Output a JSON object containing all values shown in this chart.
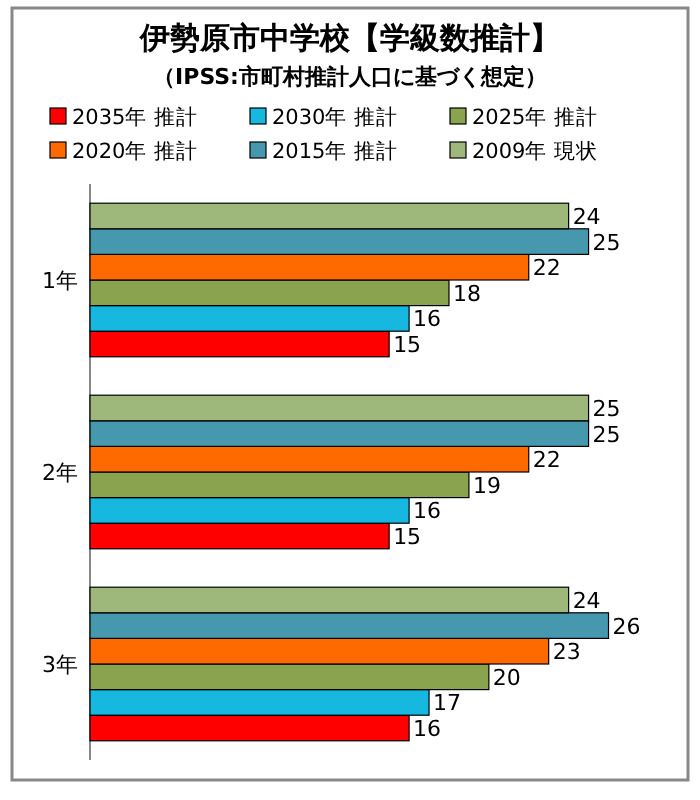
{
  "chart_data": {
    "type": "bar",
    "orientation": "horizontal",
    "title": "伊勢原市中学校【学級数推計】",
    "subtitle": "（IPSS:市町村推計人口に基づく想定）",
    "categories": [
      "1年",
      "2年",
      "3年"
    ],
    "data_labels": true,
    "legend": "top",
    "series": [
      {
        "name": "2035年 推計",
        "color": "#ff0000",
        "values": [
          15,
          15,
          16
        ]
      },
      {
        "name": "2030年 推計",
        "color": "#17b8e0",
        "values": [
          16,
          16,
          17
        ]
      },
      {
        "name": "2025年 推計",
        "color": "#8aa34e",
        "values": [
          18,
          19,
          20
        ]
      },
      {
        "name": "2020年 推計",
        "color": "#ff6a00",
        "values": [
          22,
          22,
          23
        ]
      },
      {
        "name": "2015年 推計",
        "color": "#4598ae",
        "values": [
          25,
          25,
          26
        ]
      },
      {
        "name": "2009年 現状",
        "color": "#9db87a",
        "values": [
          24,
          25,
          24
        ]
      }
    ]
  }
}
